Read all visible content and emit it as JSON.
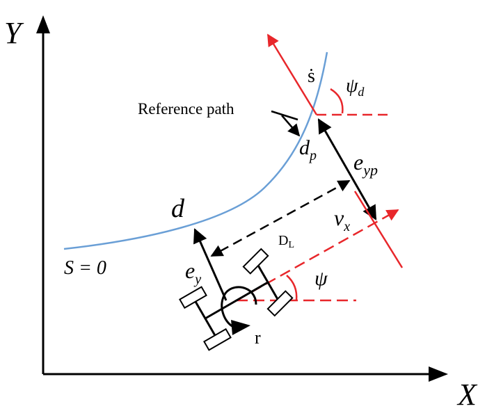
{
  "diagram": {
    "axes": {
      "x_label": "X",
      "y_label": "Y"
    },
    "labels": {
      "reference_path": "Reference path",
      "s_dot": "ṡ",
      "psi_d": "ψ",
      "psi_d_sub": "d",
      "d_p": "d",
      "d_p_sub": "p",
      "e_yp": "e",
      "e_yp_sub": "yp",
      "v_x": "v",
      "v_x_sub": "x",
      "d": "d",
      "D_L": "D",
      "D_L_sub": "L",
      "s_zero": "S = 0",
      "e_y": "e",
      "e_y_sub": "y",
      "psi": "ψ",
      "r": "r"
    },
    "colors": {
      "axis": "#000000",
      "path": "#6a9fd6",
      "red": "#e8272b",
      "black": "#000000",
      "wheel_fill": "#ffffff"
    }
  }
}
